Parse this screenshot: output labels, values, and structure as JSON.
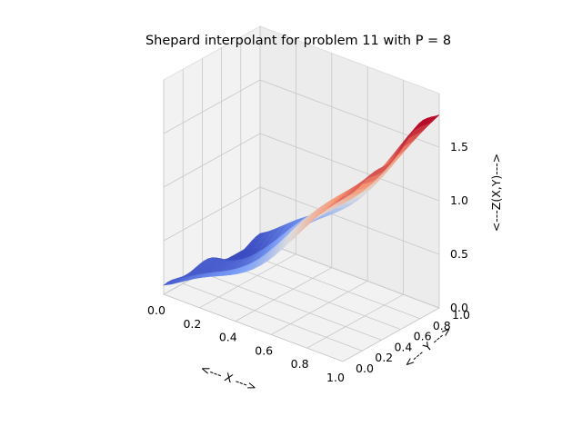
{
  "chart_data": {
    "type": "surface3d",
    "title": "Shepard interpolant for problem 11 with P = 8",
    "xlabel": "<--- X --->",
    "ylabel": "<--- Y --->",
    "zlabel": "<---Z(X,Y)--->",
    "xlim": [
      0.0,
      1.0
    ],
    "ylim": [
      0.0,
      1.0
    ],
    "zlim": [
      0.0,
      1.8
    ],
    "xticks": [
      "0.0",
      "0.2",
      "0.4",
      "0.6",
      "0.8",
      "1.0"
    ],
    "yticks": [
      "0.0",
      "0.2",
      "0.4",
      "0.6",
      "0.8",
      "1.0"
    ],
    "zticks": [
      "0.0",
      "0.5",
      "1.0",
      "1.5"
    ],
    "colormap": "coolwarm",
    "grid": true,
    "surface": {
      "description_free": true,
      "x": [
        0.0,
        0.1,
        0.2,
        0.3,
        0.4,
        0.5,
        0.6,
        0.7,
        0.8,
        0.9,
        1.0
      ],
      "y": [
        0.0,
        0.1,
        0.2,
        0.3,
        0.4,
        0.5,
        0.6,
        0.7,
        0.8,
        0.9,
        1.0
      ],
      "z_min": 0.0,
      "z_max": 1.8
    }
  }
}
